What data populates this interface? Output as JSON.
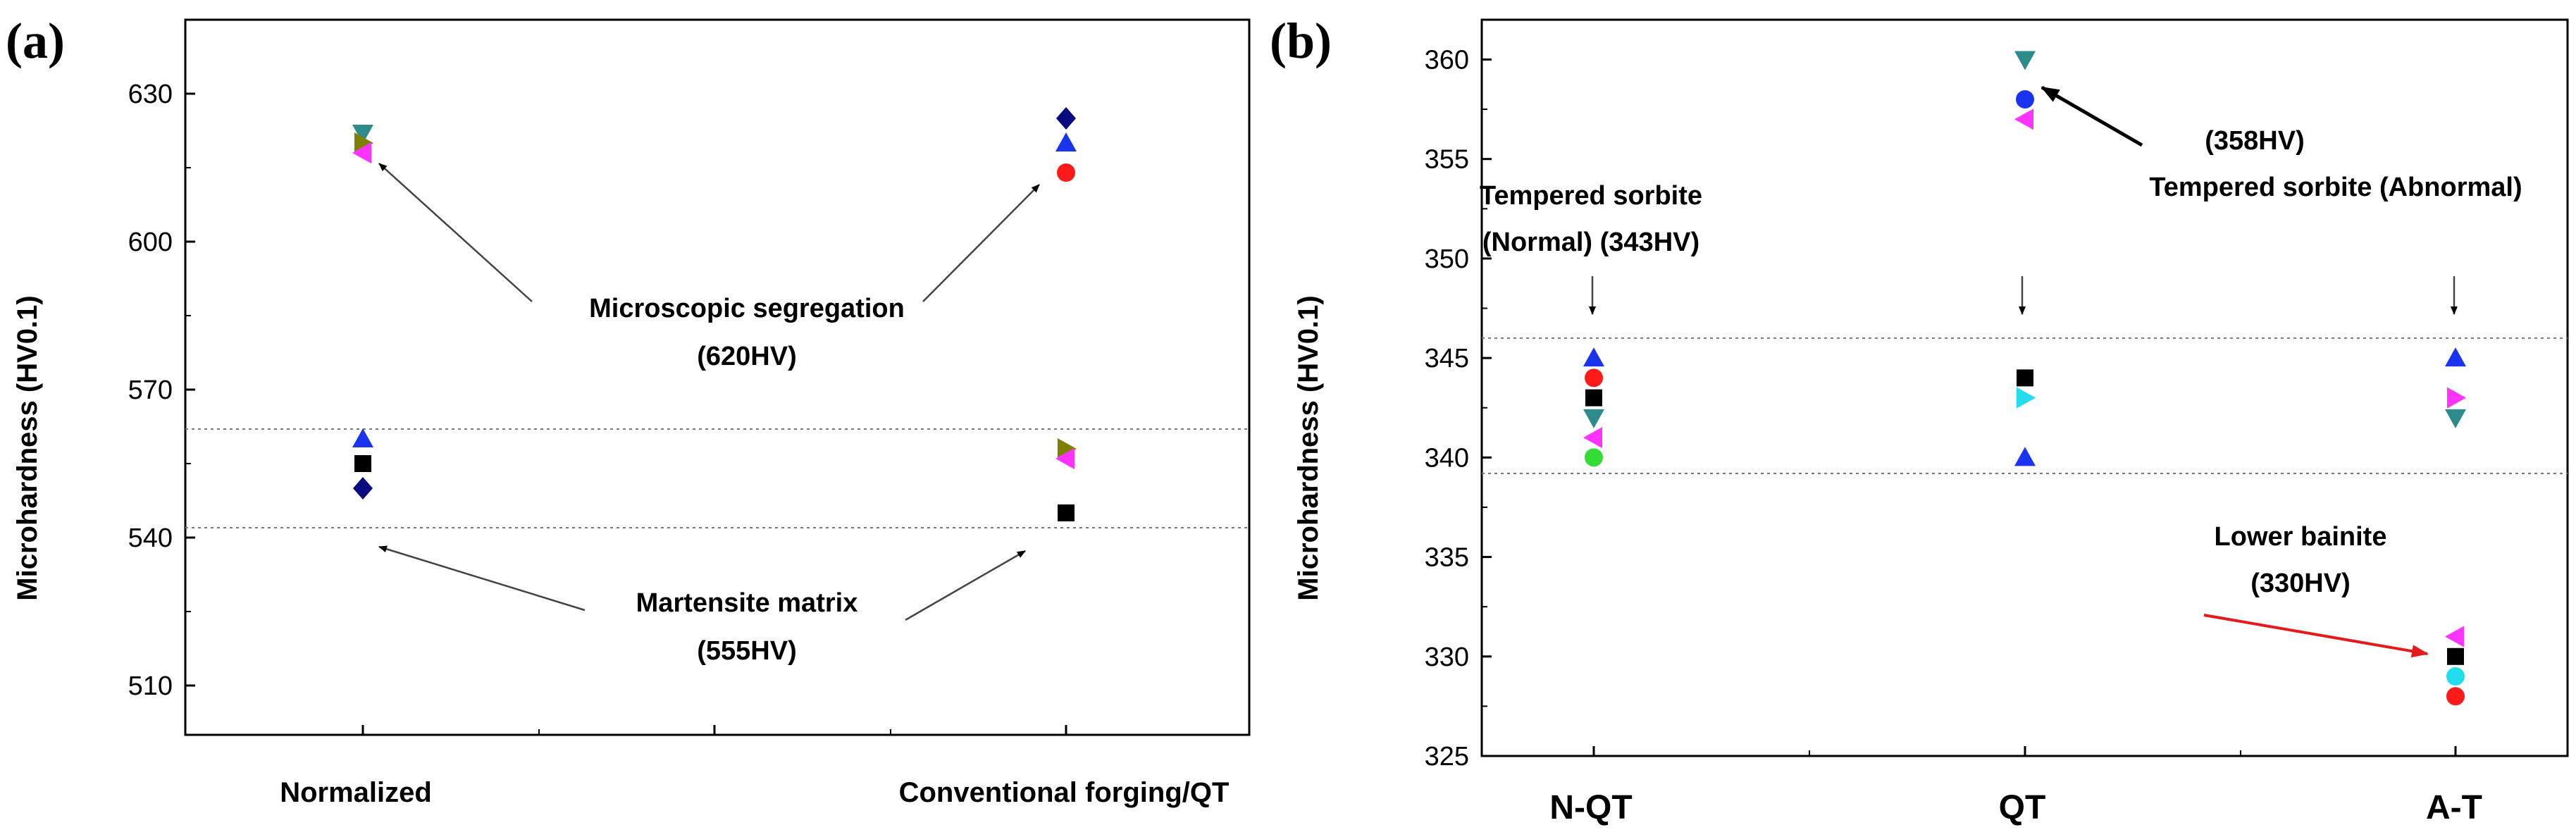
{
  "chart_data": [
    {
      "panel": "(a)",
      "type": "scatter",
      "title": "",
      "xlabel": "",
      "ylabel": "Microhardness (HV0.1)",
      "categories": [
        "Normalized",
        "Conventional forging/QT"
      ],
      "ylim": [
        500,
        645
      ],
      "yticks": [
        510,
        540,
        570,
        600,
        630
      ],
      "reference_lines": [
        562,
        542
      ],
      "points": [
        {
          "category": "Normalized",
          "value": 622,
          "marker": "triangle-down",
          "color": "#2e8b8b"
        },
        {
          "category": "Normalized",
          "value": 620,
          "marker": "triangle-right",
          "color": "#808000"
        },
        {
          "category": "Normalized",
          "value": 618,
          "marker": "triangle-left",
          "color": "#ff33ff"
        },
        {
          "category": "Normalized",
          "value": 560,
          "marker": "triangle-up",
          "color": "#1a33ee"
        },
        {
          "category": "Normalized",
          "value": 555,
          "marker": "square",
          "color": "#000000"
        },
        {
          "category": "Normalized",
          "value": 550,
          "marker": "diamond",
          "color": "#0a0a80"
        },
        {
          "category": "Conventional forging/QT",
          "value": 625,
          "marker": "diamond",
          "color": "#0a0a80"
        },
        {
          "category": "Conventional forging/QT",
          "value": 620,
          "marker": "triangle-up",
          "color": "#1a33ee"
        },
        {
          "category": "Conventional forging/QT",
          "value": 614,
          "marker": "circle",
          "color": "#ff1a1a"
        },
        {
          "category": "Conventional forging/QT",
          "value": 558,
          "marker": "triangle-right",
          "color": "#808000"
        },
        {
          "category": "Conventional forging/QT",
          "value": 556,
          "marker": "triangle-left",
          "color": "#ff33ff"
        },
        {
          "category": "Conventional forging/QT",
          "value": 545,
          "marker": "square",
          "color": "#000000"
        }
      ],
      "annotations": [
        {
          "text": "Microscopic segregation",
          "value_text": "(620HV)"
        },
        {
          "text": "Martensite matrix",
          "value_text": "(555HV)"
        }
      ]
    },
    {
      "panel": "(b)",
      "type": "scatter",
      "title": "",
      "xlabel": "",
      "ylabel": "Microhardness (HV0.1)",
      "categories": [
        "N-QT",
        "QT",
        "A-T"
      ],
      "ylim": [
        325,
        362
      ],
      "yticks": [
        325,
        330,
        335,
        340,
        345,
        350,
        355,
        360
      ],
      "reference_lines": [
        346,
        339.2
      ],
      "points": [
        {
          "category": "N-QT",
          "value": 345,
          "marker": "triangle-up",
          "color": "#1a33ee"
        },
        {
          "category": "N-QT",
          "value": 344,
          "marker": "circle",
          "color": "#ff1a1a"
        },
        {
          "category": "N-QT",
          "value": 343,
          "marker": "square",
          "color": "#000000"
        },
        {
          "category": "N-QT",
          "value": 342,
          "marker": "triangle-down",
          "color": "#2e8b8b"
        },
        {
          "category": "N-QT",
          "value": 341,
          "marker": "triangle-left",
          "color": "#ff33ff"
        },
        {
          "category": "N-QT",
          "value": 340,
          "marker": "circle",
          "color": "#33dd33"
        },
        {
          "category": "QT",
          "value": 360,
          "marker": "triangle-down",
          "color": "#2e8b8b"
        },
        {
          "category": "QT",
          "value": 358,
          "marker": "circle",
          "color": "#1a33ee"
        },
        {
          "category": "QT",
          "value": 357,
          "marker": "triangle-left",
          "color": "#ff33ff"
        },
        {
          "category": "QT",
          "value": 344,
          "marker": "square",
          "color": "#000000"
        },
        {
          "category": "QT",
          "value": 343,
          "marker": "triangle-right",
          "color": "#22ddee"
        },
        {
          "category": "QT",
          "value": 340,
          "marker": "triangle-up",
          "color": "#1a33ee"
        },
        {
          "category": "A-T",
          "value": 345,
          "marker": "triangle-up",
          "color": "#1a33ee"
        },
        {
          "category": "A-T",
          "value": 343,
          "marker": "triangle-right",
          "color": "#ff33ff"
        },
        {
          "category": "A-T",
          "value": 342,
          "marker": "triangle-down",
          "color": "#2e8b8b"
        },
        {
          "category": "A-T",
          "value": 331,
          "marker": "triangle-left",
          "color": "#ff33ff"
        },
        {
          "category": "A-T",
          "value": 330,
          "marker": "square",
          "color": "#000000"
        },
        {
          "category": "A-T",
          "value": 329,
          "marker": "circle",
          "color": "#22ddee"
        },
        {
          "category": "A-T",
          "value": 328,
          "marker": "circle",
          "color": "#ff1a1a"
        }
      ],
      "annotations": [
        {
          "text": "Tempered sorbite",
          "text2": "(Normal) (343HV)"
        },
        {
          "text": "(358HV)",
          "text2": "Tempered sorbite (Abnormal)"
        },
        {
          "text": "Lower bainite",
          "text2": "(330HV)"
        }
      ]
    }
  ]
}
